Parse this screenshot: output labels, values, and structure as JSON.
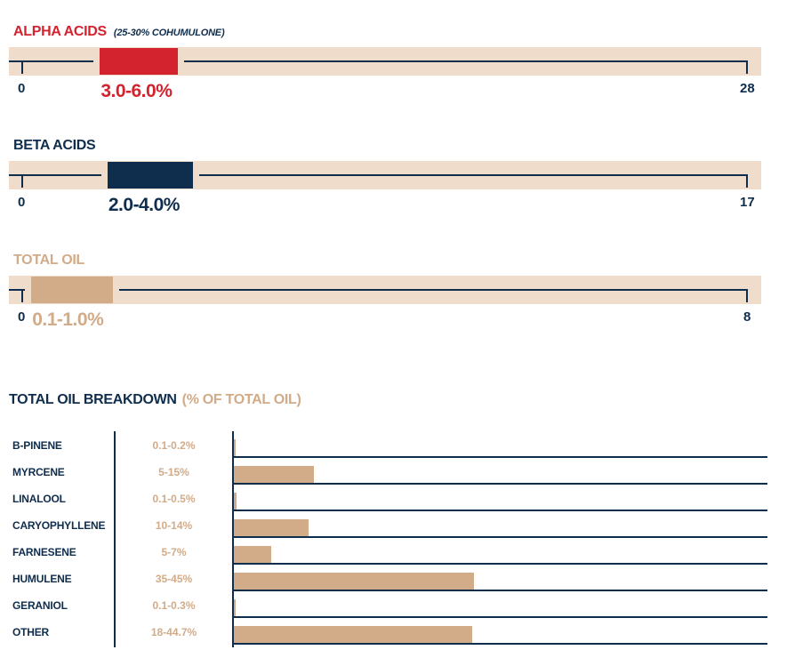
{
  "colors": {
    "red": "#d2232f",
    "navy": "#0f2d4d",
    "tan": "#d2ab88",
    "track": "#efdccb"
  },
  "chart_data": [
    {
      "type": "range-bar",
      "title": "ALPHA ACIDS",
      "subtitle": "(25-30% COHUMULONE)",
      "min": 0,
      "max": 28,
      "min_label": "0",
      "max_label": "28",
      "range": [
        3.0,
        6.0
      ],
      "value_label": "3.0-6.0%",
      "color": "#d2232f"
    },
    {
      "type": "range-bar",
      "title": "BETA ACIDS",
      "subtitle": "",
      "min": 0,
      "max": 17,
      "min_label": "0",
      "max_label": "17",
      "range": [
        2.0,
        4.0
      ],
      "value_label": "2.0-4.0%",
      "color": "#0f2d4d"
    },
    {
      "type": "range-bar",
      "title": "TOTAL OIL",
      "subtitle": "",
      "min": 0,
      "max": 8,
      "min_label": "0",
      "max_label": "8",
      "range": [
        0.1,
        1.0
      ],
      "value_label": "0.1-1.0%",
      "color": "#d2ab88"
    },
    {
      "type": "bar",
      "title": "TOTAL OIL BREAKDOWN",
      "unit_label": "(% OF TOTAL OIL)",
      "xlim": [
        0,
        100
      ],
      "categories": [
        "B-PINENE",
        "MYRCENE",
        "LINALOOL",
        "CARYOPHYLLENE",
        "FARNESENE",
        "HUMULENE",
        "GERANIOL",
        "OTHER"
      ],
      "range_labels": [
        "0.1-0.2%",
        "5-15%",
        "0.1-0.5%",
        "10-14%",
        "5-7%",
        "35-45%",
        "0.1-0.3%",
        "18-44.7%"
      ],
      "values": [
        0.2,
        15,
        0.5,
        14,
        7,
        45,
        0.3,
        44.7
      ]
    }
  ]
}
